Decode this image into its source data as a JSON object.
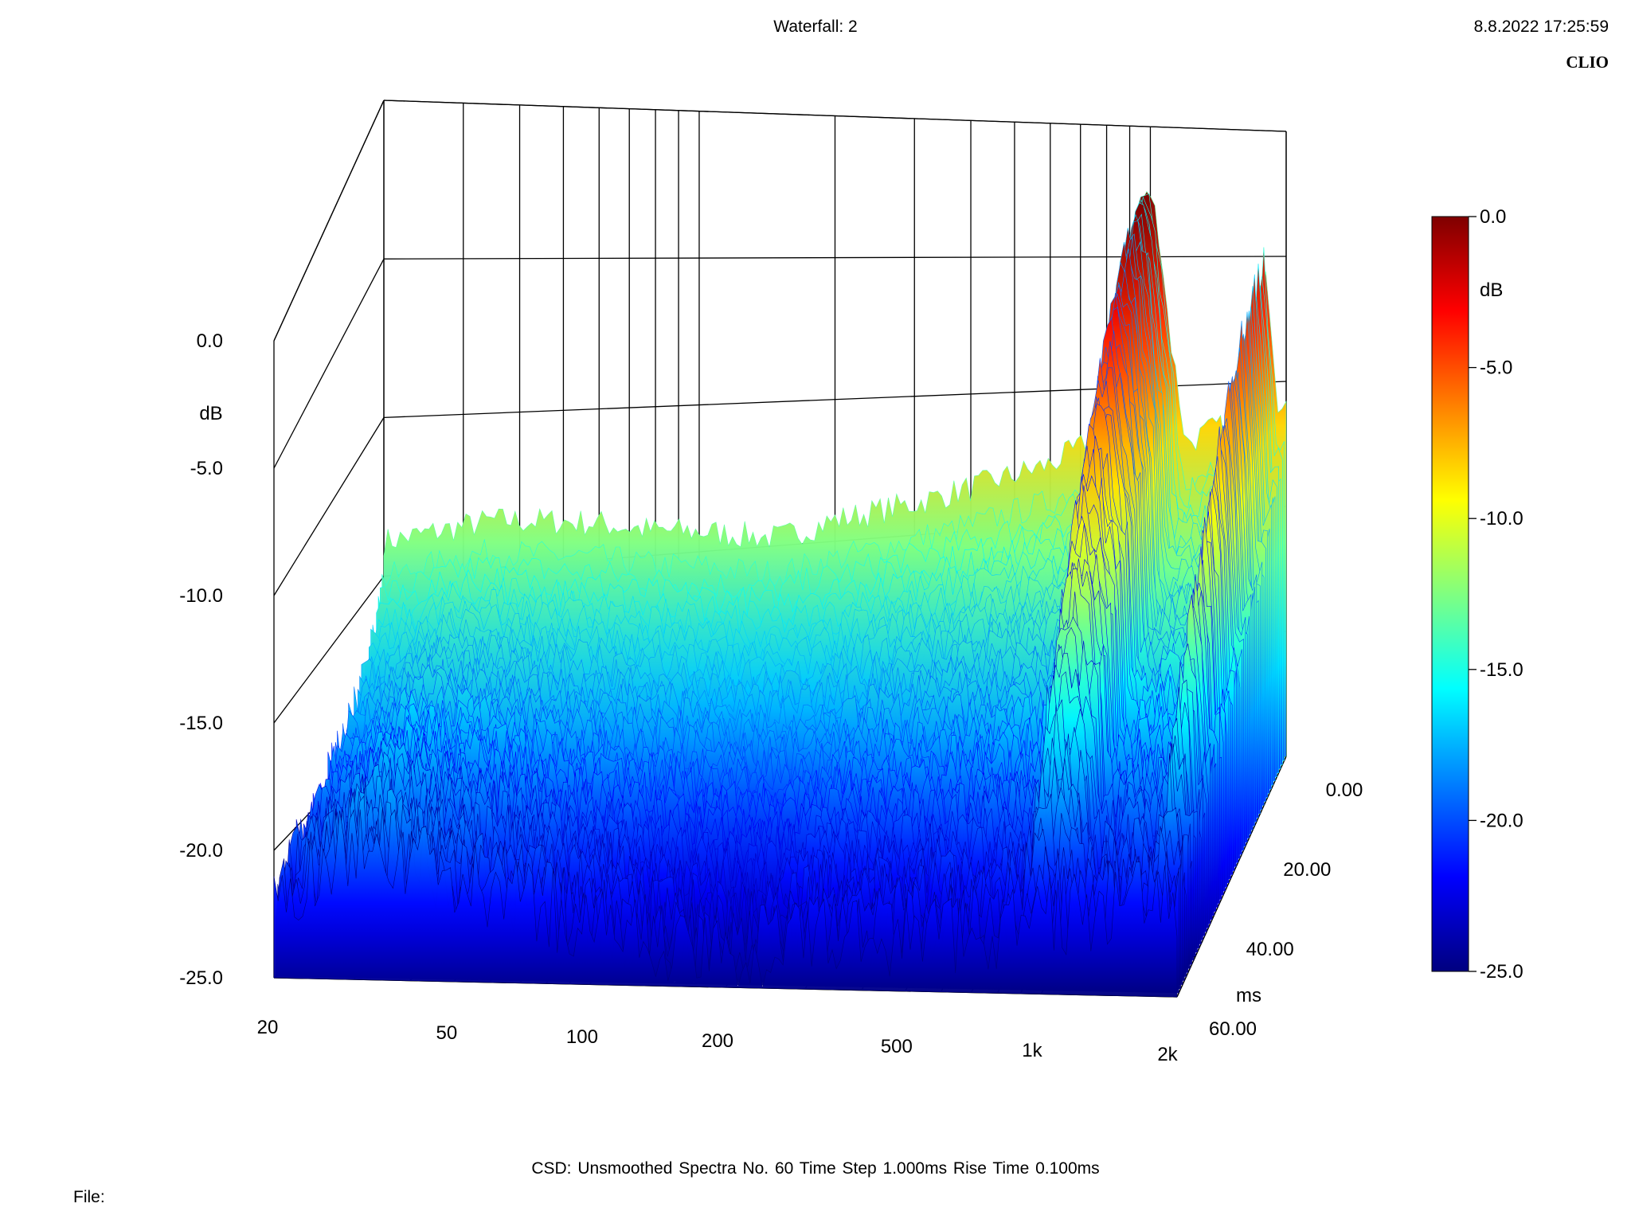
{
  "window": {
    "title": "Waterfall: 2",
    "timestamp": "8.8.2022 17:25:59",
    "brand": "CLIO"
  },
  "footer": {
    "info": "CSD:   Unsmoothed   Spectra No. 60   Time Step 1.000ms   Rise Time 0.100ms",
    "file_label": "File:"
  },
  "colors": {
    "axis": "#000000",
    "grid": "#000000",
    "colormap": [
      "#00007f",
      "#0000ff",
      "#0080ff",
      "#00ffff",
      "#80ff80",
      "#ffff00",
      "#ff8000",
      "#ff0000",
      "#7f0000"
    ]
  },
  "chart_data": {
    "type": "heatmap",
    "subtype": "waterfall-3d",
    "z_axis": {
      "label": "dB",
      "range": [
        -25.0,
        0.0
      ],
      "ticks": [
        "0.0",
        "-5.0",
        "-10.0",
        "-15.0",
        "-20.0",
        "-25.0"
      ]
    },
    "x_axis": {
      "scale": "log",
      "range": [
        20,
        2000
      ],
      "ticks": [
        "20",
        "50",
        "100",
        "200",
        "500",
        "1k",
        "2k"
      ]
    },
    "y_axis": {
      "label": "ms",
      "range": [
        0,
        60
      ],
      "ticks": [
        "0.00",
        "20.00",
        "40.00",
        "60.00"
      ]
    },
    "colorbar": {
      "label": "dB",
      "range": [
        -25.0,
        0.0
      ],
      "ticks": [
        "0.0",
        "-5.0",
        "-10.0",
        "-15.0",
        "-20.0",
        "-25.0"
      ]
    },
    "spectra_count": 60,
    "time_step_ms": 1.0,
    "first_spectrum": {
      "freq_hz": [
        20,
        35,
        50,
        60,
        80,
        100,
        150,
        200,
        300,
        400,
        600,
        700,
        800,
        900,
        950,
        1000,
        1050,
        1100,
        1200,
        1400,
        1600,
        1700,
        1800,
        1850,
        1900,
        2000
      ],
      "db": [
        -10.0,
        -9.8,
        -10.3,
        -10.6,
        -11.3,
        -11.6,
        -12.4,
        -12.0,
        -11.8,
        -11.5,
        -11.0,
        -10.5,
        -9.0,
        -5.0,
        -0.4,
        0.0,
        -2.0,
        -6.0,
        -11.0,
        -10.5,
        -11.0,
        -9.0,
        -3.5,
        -7.0,
        -10.0,
        -9.5
      ]
    },
    "last_spectrum": {
      "freq_hz": [
        20,
        30,
        50,
        100,
        150,
        200,
        300,
        500,
        800,
        1000,
        1500,
        2000
      ],
      "db": [
        -22.0,
        -19.5,
        -21.0,
        -22.5,
        -23.5,
        -24.0,
        -23.0,
        -22.8,
        -22.5,
        -22.0,
        -21.5,
        -21.0
      ]
    }
  }
}
